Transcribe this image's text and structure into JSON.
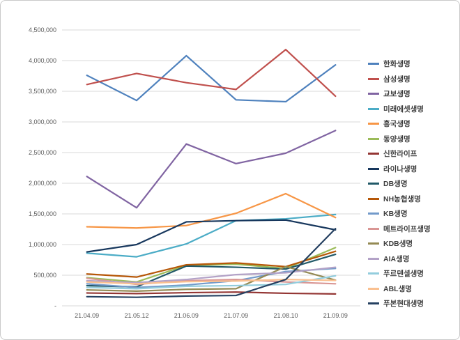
{
  "chart_data": {
    "type": "line",
    "title": "",
    "xlabel": "",
    "ylabel": "",
    "legend_position": "right",
    "grid": true,
    "ylim": [
      0,
      4500000
    ],
    "y_tick_step": 500000,
    "y_tick_labels": [
      "-",
      "500,000",
      "1,000,000",
      "1,500,000",
      "2,000,000",
      "2,500,000",
      "3,000,000",
      "3,500,000",
      "4,000,000",
      "4,500,000"
    ],
    "categories": [
      "21.04.09",
      "21.05.12",
      "21.06.09",
      "21.07.09",
      "21.08.10",
      "21.09.09"
    ],
    "series": [
      {
        "name": "한화생명",
        "color": "#4E81BD",
        "values": [
          3760000,
          3350000,
          4080000,
          3360000,
          3330000,
          3930000
        ]
      },
      {
        "name": "삼성생명",
        "color": "#C0504D",
        "values": [
          3610000,
          3790000,
          3640000,
          3530000,
          4180000,
          3420000
        ]
      },
      {
        "name": "교보생명",
        "color": "#8064A2",
        "values": [
          2110000,
          1600000,
          2640000,
          2320000,
          2490000,
          2860000
        ]
      },
      {
        "name": "미래에셋생명",
        "color": "#4BACC6",
        "values": [
          860000,
          800000,
          1010000,
          1390000,
          1420000,
          1490000
        ]
      },
      {
        "name": "흥국생명",
        "color": "#F79646",
        "values": [
          1290000,
          1270000,
          1310000,
          1510000,
          1830000,
          1440000
        ]
      },
      {
        "name": "동양생명",
        "color": "#9BBB59",
        "values": [
          460000,
          390000,
          660000,
          680000,
          610000,
          950000
        ]
      },
      {
        "name": "신한라이프",
        "color": "#943634",
        "values": [
          210000,
          200000,
          215000,
          225000,
          205000,
          195000
        ]
      },
      {
        "name": "라이나생명",
        "color": "#17375D",
        "values": [
          880000,
          1000000,
          1370000,
          1390000,
          1400000,
          1240000
        ]
      },
      {
        "name": "DB생명",
        "color": "#215968",
        "values": [
          330000,
          310000,
          650000,
          630000,
          600000,
          840000
        ]
      },
      {
        "name": "NH농협생명",
        "color": "#B65708",
        "values": [
          520000,
          470000,
          670000,
          700000,
          640000,
          890000
        ]
      },
      {
        "name": "KB생명",
        "color": "#729ACA",
        "values": [
          360000,
          300000,
          340000,
          410000,
          560000,
          610000
        ]
      },
      {
        "name": "메트라이프생명",
        "color": "#D99694",
        "values": [
          450000,
          350000,
          410000,
          430000,
          390000,
          360000
        ]
      },
      {
        "name": "KDB생명",
        "color": "#948A54",
        "values": [
          260000,
          240000,
          270000,
          280000,
          640000,
          420000
        ]
      },
      {
        "name": "AIA생명",
        "color": "#B3A2C7",
        "values": [
          410000,
          380000,
          430000,
          510000,
          540000,
          630000
        ]
      },
      {
        "name": "푸르덴셜생명",
        "color": "#93CDDD",
        "values": [
          300000,
          280000,
          320000,
          330000,
          350000,
          490000
        ]
      },
      {
        "name": "ABL생명",
        "color": "#FAC090",
        "values": [
          390000,
          360000,
          395000,
          405000,
          430000,
          415000
        ]
      },
      {
        "name": "푸본현대생명",
        "color": "#254061",
        "values": [
          150000,
          140000,
          160000,
          170000,
          430000,
          1260000
        ]
      }
    ]
  },
  "colors": {
    "grid": "#D9D9D9",
    "axis_text": "#595959",
    "legend_text": "#3F3F3F",
    "background": "#FFFFFF",
    "frame_border": "#C9C9C9"
  }
}
